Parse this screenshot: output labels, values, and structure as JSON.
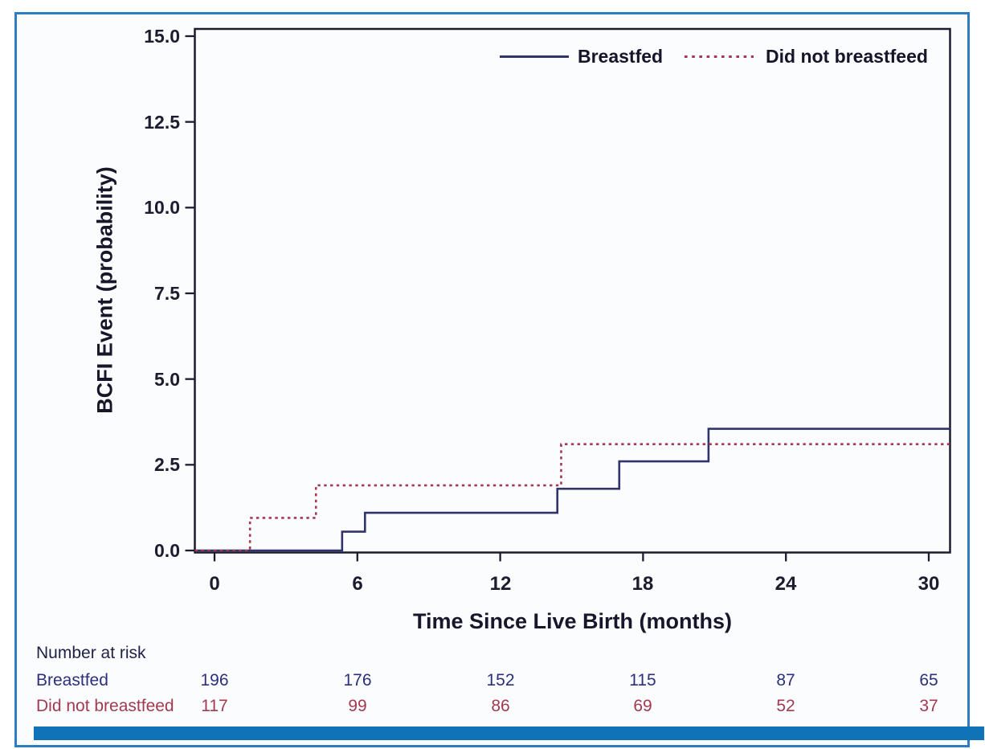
{
  "figure": {
    "border_color": "#2e7cc2",
    "bottom_bar_color": "#1173b7",
    "background_color": "#fbfcfe"
  },
  "chart_data": {
    "type": "line",
    "subtype": "step-cumulative-incidence",
    "title": "",
    "xlabel": "Time Since Live Birth (months)",
    "ylabel": "BCFI Event (probability)",
    "xlim": [
      0,
      30.9
    ],
    "ylim": [
      0,
      15
    ],
    "grid": false,
    "legend_position": "top-right-inside",
    "xticks": [
      0,
      6,
      12,
      18,
      24,
      30
    ],
    "yticks": [
      0.0,
      2.5,
      5.0,
      7.5,
      10.0,
      12.5,
      15.0
    ],
    "x_tick_labels": [
      "0",
      "6",
      "12",
      "18",
      "24",
      "30"
    ],
    "y_tick_labels": [
      "15.0",
      "12.5",
      "10.0",
      "7.5",
      "5.0",
      "2.5",
      "0.0"
    ],
    "axis_color": "#1b1c2e",
    "series": [
      {
        "name": "Breastfed",
        "color": "#31346a",
        "style": "solid",
        "steps": [
          [
            5.36,
            0.55
          ],
          [
            6.32,
            1.1
          ],
          [
            14.4,
            1.8
          ],
          [
            17.0,
            2.6
          ],
          [
            20.75,
            3.55
          ]
        ],
        "start_value": 0,
        "end_x": 30.9
      },
      {
        "name": "Did not breastfeed",
        "color": "#a23a4f",
        "style": "dashed",
        "steps": [
          [
            1.49,
            0.95
          ],
          [
            4.26,
            1.9
          ],
          [
            14.56,
            3.1
          ]
        ],
        "start_value": 0,
        "end_x": 30.9
      }
    ]
  },
  "legend": {
    "items": [
      {
        "label": "Breastfed",
        "line_style": "solid",
        "color": "#31346a"
      },
      {
        "label": "Did not breastfeed",
        "line_style": "dashed",
        "color": "#a23a4f"
      }
    ]
  },
  "at_risk": {
    "header": "Number at risk",
    "times": [
      0,
      6,
      12,
      18,
      24,
      30
    ],
    "rows": [
      {
        "label": "Breastfed",
        "color": "#2c2f7c",
        "values": [
          "196",
          "176",
          "152",
          "115",
          "87",
          "65"
        ]
      },
      {
        "label": "Did not breastfeed",
        "color": "#a23a4f",
        "values": [
          "117",
          "99",
          "86",
          "69",
          "52",
          "37"
        ]
      }
    ]
  }
}
